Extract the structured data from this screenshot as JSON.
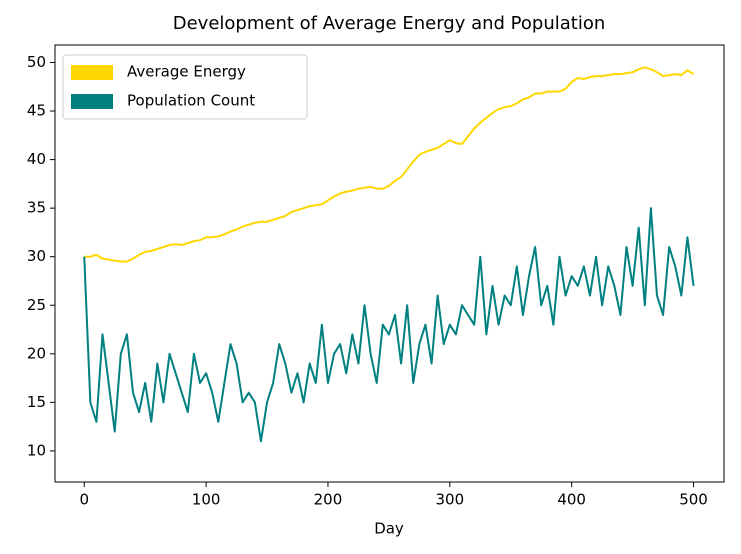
{
  "chart_data": {
    "type": "line",
    "title": "Development of Average Energy and Population",
    "xlabel": "Day",
    "x": [
      0,
      5,
      10,
      15,
      20,
      25,
      30,
      35,
      40,
      45,
      50,
      55,
      60,
      65,
      70,
      75,
      80,
      85,
      90,
      95,
      100,
      105,
      110,
      115,
      120,
      125,
      130,
      135,
      140,
      145,
      150,
      155,
      160,
      165,
      170,
      175,
      180,
      185,
      190,
      195,
      200,
      205,
      210,
      215,
      220,
      225,
      230,
      235,
      240,
      245,
      250,
      255,
      260,
      265,
      270,
      275,
      280,
      285,
      290,
      295,
      300,
      305,
      310,
      315,
      320,
      325,
      330,
      335,
      340,
      345,
      350,
      355,
      360,
      365,
      370,
      375,
      380,
      385,
      390,
      395,
      400,
      405,
      410,
      415,
      420,
      425,
      430,
      435,
      440,
      445,
      450,
      455,
      460,
      465,
      470,
      475,
      480,
      485,
      490,
      495,
      500
    ],
    "series": [
      {
        "name": "Average Energy",
        "color": "#ffd700",
        "values": [
          30,
          30,
          30.2,
          29.8,
          29.7,
          29.6,
          29.5,
          29.5,
          29.8,
          30.2,
          30.5,
          30.6,
          30.8,
          31,
          31.2,
          31.3,
          31.2,
          31.4,
          31.6,
          31.7,
          32,
          32,
          32.1,
          32.3,
          32.6,
          32.8,
          33.1,
          33.3,
          33.5,
          33.6,
          33.6,
          33.8,
          34,
          34.2,
          34.6,
          34.8,
          35,
          35.2,
          35.3,
          35.4,
          35.8,
          36.2,
          36.5,
          36.7,
          36.8,
          37,
          37.1,
          37.2,
          37,
          37,
          37.3,
          37.8,
          38.2,
          39,
          39.8,
          40.5,
          40.8,
          41,
          41.2,
          41.6,
          42,
          41.7,
          41.6,
          42.4,
          43.2,
          43.8,
          44.3,
          44.8,
          45.2,
          45.4,
          45.5,
          45.8,
          46.2,
          46.4,
          46.8,
          46.8,
          47,
          47,
          47,
          47.3,
          48,
          48.4,
          48.3,
          48.5,
          48.6,
          48.6,
          48.7,
          48.8,
          48.8,
          48.9,
          49,
          49.3,
          49.5,
          49.3,
          49,
          48.6,
          48.7,
          48.8,
          48.7,
          49.2,
          48.8
        ]
      },
      {
        "name": "Population Count",
        "color": "#008080",
        "values": [
          30,
          15,
          13,
          22,
          17,
          12,
          20,
          22,
          16,
          14,
          17,
          13,
          19,
          15,
          20,
          18,
          16,
          14,
          20,
          17,
          18,
          16,
          13,
          17,
          21,
          19,
          15,
          16,
          15,
          11,
          15,
          17,
          21,
          19,
          16,
          18,
          15,
          19,
          17,
          23,
          17,
          20,
          21,
          18,
          22,
          19,
          25,
          20,
          17,
          23,
          22,
          24,
          19,
          25,
          17,
          21,
          23,
          19,
          26,
          21,
          23,
          22,
          25,
          24,
          23,
          30,
          22,
          27,
          23,
          26,
          25,
          29,
          24,
          28,
          31,
          25,
          27,
          23,
          30,
          26,
          28,
          27,
          29,
          26,
          30,
          25,
          29,
          27,
          24,
          31,
          27,
          33,
          25,
          35,
          26,
          24,
          31,
          29,
          26,
          32,
          27
        ]
      }
    ],
    "xlim": [
      -24,
      525
    ],
    "ylim": [
      6.8,
      51.8
    ],
    "xticks": [
      0,
      100,
      200,
      300,
      400,
      500
    ],
    "yticks": [
      10,
      15,
      20,
      25,
      30,
      35,
      40,
      45,
      50
    ],
    "legend": "upper left",
    "grid": false
  }
}
